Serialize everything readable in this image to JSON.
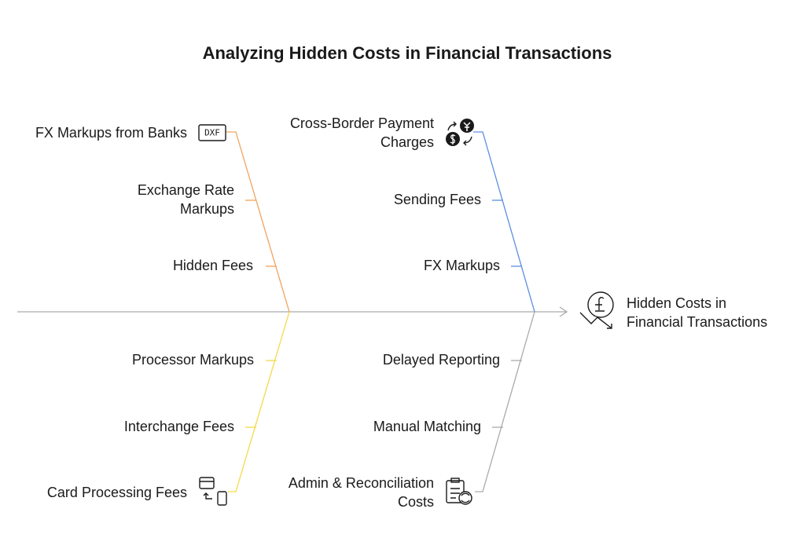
{
  "title": "Analyzing Hidden Costs in Financial Transactions",
  "effect": {
    "lines": [
      "Hidden Costs in",
      "Financial Transactions"
    ]
  },
  "branches": [
    {
      "color": "#f0a45f",
      "head": {
        "lines": [
          "FX Markups from Banks"
        ]
      },
      "icon_text": "DXF",
      "causes": [
        {
          "lines": [
            "Exchange Rate",
            "Markups"
          ]
        },
        {
          "lines": [
            "Hidden Fees"
          ]
        }
      ]
    },
    {
      "color": "#5b8fe0",
      "head": {
        "lines": [
          "Cross-Border Payment",
          "Charges"
        ]
      },
      "causes": [
        {
          "lines": [
            "Sending Fees"
          ]
        },
        {
          "lines": [
            "FX Markups"
          ]
        }
      ]
    },
    {
      "color": "#f5d94a",
      "head": {
        "lines": [
          "Card Processing Fees"
        ]
      },
      "causes": [
        {
          "lines": [
            "Processor Markups"
          ]
        },
        {
          "lines": [
            "Interchange Fees"
          ]
        }
      ]
    },
    {
      "color": "#aaaaaa",
      "head": {
        "lines": [
          "Admin & Reconciliation",
          "Costs"
        ]
      },
      "causes": [
        {
          "lines": [
            "Delayed Reporting"
          ]
        },
        {
          "lines": [
            "Manual Matching"
          ]
        }
      ]
    }
  ]
}
